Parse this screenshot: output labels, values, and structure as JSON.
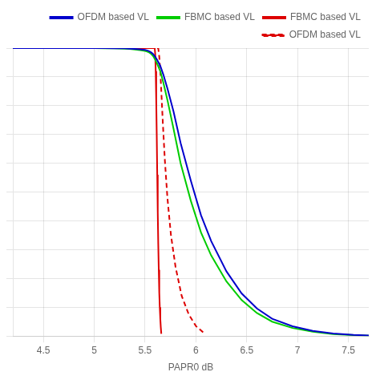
{
  "chart_data": {
    "type": "line",
    "xlabel": "PAPR0 dB",
    "xlim": [
      4.2,
      7.7
    ],
    "ylim": [
      0.0,
      1.0
    ],
    "xticks": [
      4.5,
      5,
      5.5,
      6,
      6.5,
      7,
      7.5
    ],
    "yticks": [
      0,
      0.1,
      0.2,
      0.3,
      0.4,
      0.5,
      0.6,
      0.7,
      0.8,
      0.9,
      1.0
    ],
    "tick_labels": "x",
    "grid": true,
    "legend": "upper right",
    "series": [
      {
        "name": "OFDM based VL",
        "color": "#0000cc",
        "line_style": "solid",
        "x": [
          4.2,
          4.5,
          4.8,
          5.0,
          5.1,
          5.2,
          5.3,
          5.35,
          5.4,
          5.45,
          5.5,
          5.52,
          5.54,
          5.56,
          5.58,
          5.6,
          5.62,
          5.65,
          5.68,
          5.72,
          5.78,
          5.85,
          5.95,
          6.05,
          6.15,
          6.3,
          6.45,
          6.6,
          6.75,
          6.95,
          7.15,
          7.35,
          7.55,
          7.7
        ],
        "values": [
          1.0,
          1.0,
          1.0,
          1.0,
          0.9998,
          0.9995,
          0.999,
          0.998,
          0.997,
          0.996,
          0.994,
          0.992,
          0.989,
          0.985,
          0.979,
          0.97,
          0.958,
          0.938,
          0.908,
          0.86,
          0.78,
          0.67,
          0.54,
          0.42,
          0.33,
          0.225,
          0.148,
          0.096,
          0.06,
          0.034,
          0.018,
          0.009,
          0.004,
          0.002
        ]
      },
      {
        "name": "FBMC based VL",
        "color": "#00cc00",
        "line_style": "solid",
        "x": [
          4.2,
          4.5,
          4.8,
          5.0,
          5.1,
          5.2,
          5.3,
          5.35,
          5.4,
          5.45,
          5.5,
          5.52,
          5.54,
          5.56,
          5.58,
          5.6,
          5.62,
          5.65,
          5.68,
          5.72,
          5.78,
          5.85,
          5.95,
          6.05,
          6.15,
          6.3,
          6.45,
          6.6,
          6.75,
          6.95,
          7.15,
          7.35,
          7.55,
          7.7
        ],
        "values": [
          1.0,
          1.0,
          1.0,
          1.0,
          0.9995,
          0.999,
          0.998,
          0.997,
          0.995,
          0.993,
          0.99,
          0.988,
          0.985,
          0.98,
          0.972,
          0.96,
          0.945,
          0.92,
          0.88,
          0.82,
          0.72,
          0.6,
          0.47,
          0.36,
          0.28,
          0.19,
          0.125,
          0.08,
          0.05,
          0.028,
          0.015,
          0.007,
          0.003,
          0.001
        ]
      },
      {
        "name": "FBMC based VL",
        "color": "#dd0000",
        "line_style": "solid",
        "x": [
          4.2,
          5.595,
          5.6,
          5.605,
          5.61,
          5.615,
          5.62,
          5.625,
          5.63,
          5.635,
          5.64,
          5.645,
          5.65,
          5.655,
          5.66
        ],
        "values": [
          1.0,
          1.0,
          0.98,
          0.92,
          0.82,
          0.7,
          0.56,
          0.43,
          0.32,
          0.23,
          0.15,
          0.1,
          0.06,
          0.03,
          0.008
        ]
      },
      {
        "name": "OFDM based VL",
        "color": "#dd0000",
        "line_style": "dashed",
        "x": [
          4.2,
          5.63,
          5.64,
          5.65,
          5.66,
          5.675,
          5.695,
          5.72,
          5.755,
          5.8,
          5.86,
          5.93,
          6.0,
          6.08
        ],
        "values": [
          1.0,
          1.0,
          0.97,
          0.92,
          0.85,
          0.74,
          0.61,
          0.48,
          0.35,
          0.24,
          0.14,
          0.075,
          0.035,
          0.01
        ]
      }
    ]
  }
}
